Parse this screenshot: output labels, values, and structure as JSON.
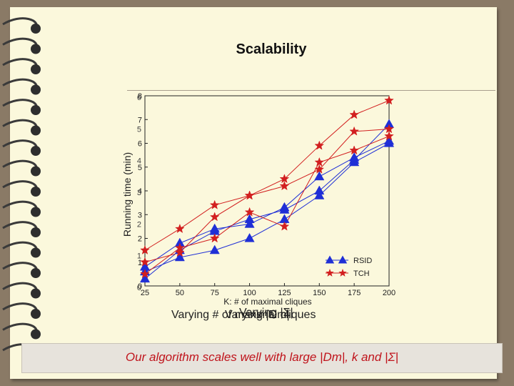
{
  "slide": {
    "title": "Scalability",
    "caption_a": "Varying # of maximal cliques",
    "caption_b": "Varying |Dm|",
    "caption_c": "Varying |Σ|",
    "footer": "Our algorithm scales well with large |Dm|, k and |Σ|"
  },
  "chart_data": {
    "type": "line",
    "title": "",
    "ylabel": "Running time (min)",
    "xlabel": "K: # of maximal cliques",
    "x": [
      25,
      50,
      75,
      100,
      125,
      150,
      175,
      200
    ],
    "xlim": [
      25,
      200
    ],
    "ylim": [
      0,
      8
    ],
    "yticks": [
      0,
      1,
      2,
      3,
      4,
      5,
      6,
      7,
      8
    ],
    "overlay_yticks": [
      "0",
      "1",
      "2",
      "3",
      "4",
      "5",
      "6"
    ],
    "grid": false,
    "legend_position": "bottom-right",
    "series": [
      {
        "name": "RSID",
        "marker": "triangle",
        "color": "#1f2fd6",
        "values": [
          0.3,
          1.5,
          2.3,
          2.8,
          3.2,
          4.0,
          5.3,
          6.8
        ]
      },
      {
        "name": "TCH",
        "marker": "star",
        "color": "#d21f1f",
        "values": [
          1.5,
          2.4,
          3.4,
          3.8,
          4.5,
          5.9,
          7.2,
          7.8
        ]
      },
      {
        "name": "",
        "marker": "triangle",
        "color": "#1f2fd6",
        "values": [
          0.6,
          1.2,
          1.5,
          2.0,
          2.8,
          3.8,
          5.2,
          6.0
        ]
      },
      {
        "name": "",
        "marker": "triangle",
        "color": "#1f2fd6",
        "values": [
          0.8,
          1.8,
          2.4,
          2.6,
          3.3,
          4.6,
          5.4,
          6.1
        ]
      },
      {
        "name": "",
        "marker": "star",
        "color": "#d21f1f",
        "values": [
          0.5,
          1.6,
          2.0,
          3.1,
          2.5,
          5.2,
          5.7,
          6.3
        ]
      },
      {
        "name": "",
        "marker": "star",
        "color": "#d21f1f",
        "values": [
          1.0,
          1.4,
          2.9,
          3.8,
          4.2,
          4.9,
          6.5,
          6.6
        ]
      }
    ]
  }
}
